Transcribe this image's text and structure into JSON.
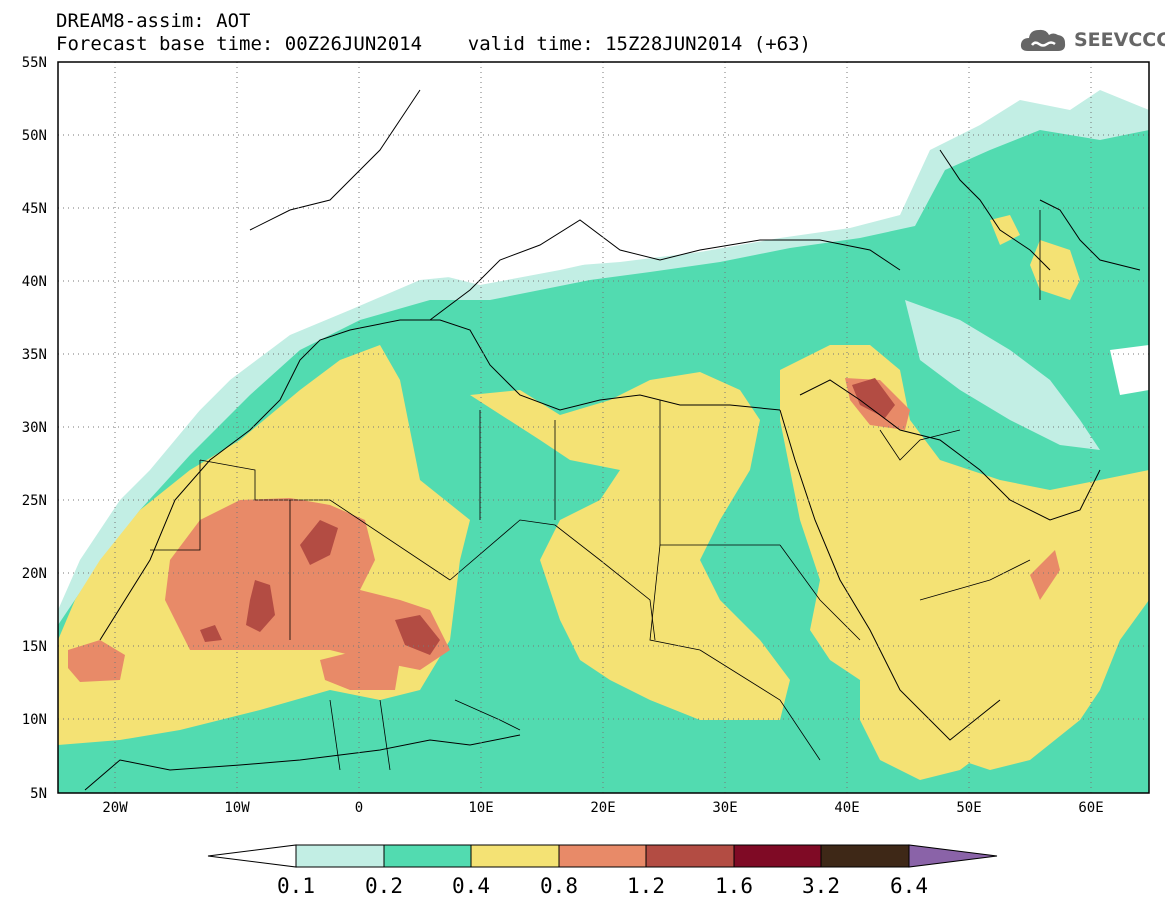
{
  "header": {
    "line1": "DREAM8-assim: AOT",
    "line2": "Forecast base time: 00Z26JUN2014    valid time: 15Z28JUN2014 (+63)"
  },
  "logo": {
    "text": "SEEVCCC",
    "icon": "cloud-icon"
  },
  "map": {
    "lat_labels": [
      "55N",
      "50N",
      "45N",
      "40N",
      "35N",
      "30N",
      "25N",
      "20N",
      "15N",
      "10N",
      "5N"
    ],
    "lon_labels": [
      "20W",
      "10W",
      "0",
      "10E",
      "20E",
      "30E",
      "40E",
      "50E",
      "60E"
    ]
  },
  "colorbar": {
    "labels": [
      "0.1",
      "0.2",
      "0.4",
      "0.8",
      "1.2",
      "1.6",
      "3.2",
      "6.4"
    ],
    "colors": [
      "#ffffff",
      "#c2eee4",
      "#52dbb0",
      "#f4e274",
      "#e88a68",
      "#b34c43",
      "#7f0a25",
      "#3e2817",
      "#8a63a8"
    ]
  },
  "palette": {
    "very_light": "#c2eee4",
    "green": "#52dbb0",
    "yellow": "#f4e274",
    "orange": "#e88a68",
    "red_brown": "#b34c43"
  }
}
